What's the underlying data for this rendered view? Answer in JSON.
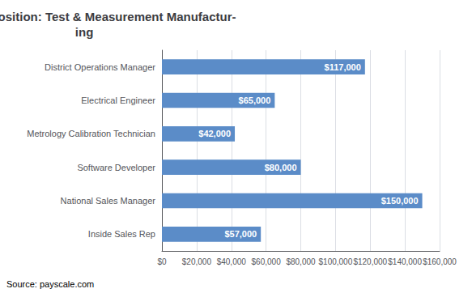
{
  "chart_data": {
    "type": "bar",
    "orientation": "horizontal",
    "title": "Salary by Position: Test & Measurement Manufactur-\ning",
    "categories": [
      "District Operations Manager",
      "Electrical Engineer",
      "Metrology Calibration Technician",
      "Software Developer",
      "National Sales Manager",
      "Inside Sales Rep"
    ],
    "values": [
      117000,
      65000,
      42000,
      80000,
      150000,
      57000
    ],
    "value_labels": [
      "$117,000",
      "$65,000",
      "$42,000",
      "$80,000",
      "$150,000",
      "$57,000"
    ],
    "data_labels": true,
    "color": "#5b8cc8",
    "xlim": [
      0,
      160000
    ],
    "xticks": [
      {
        "value": 0,
        "label": "$0"
      },
      {
        "value": 20000,
        "label": "$20,000"
      },
      {
        "value": 40000,
        "label": "$40,000"
      },
      {
        "value": 60000,
        "label": "$60,000"
      },
      {
        "value": 80000,
        "label": "$80,000"
      },
      {
        "value": 100000,
        "label": "$100,000"
      },
      {
        "value": 120000,
        "label": "$120,000"
      },
      {
        "value": 140000,
        "label": "$140,000"
      },
      {
        "value": 160000,
        "label": "$160,000"
      }
    ],
    "grid": true,
    "annotations": [
      "Source: payscale.com"
    ]
  }
}
